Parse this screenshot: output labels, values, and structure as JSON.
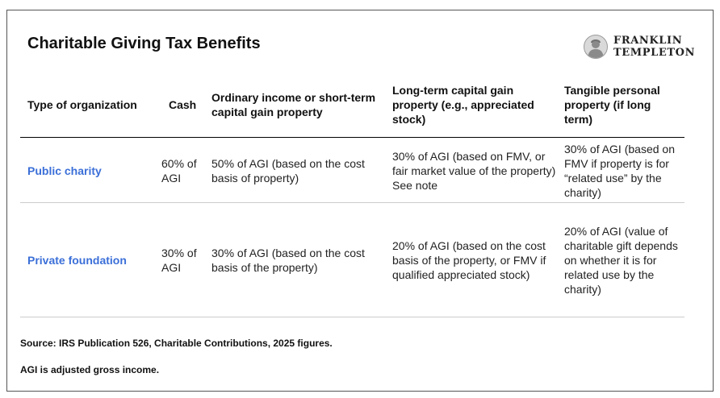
{
  "title": "Charitable Giving Tax Benefits",
  "logo": {
    "line1": "FRANKLIN",
    "line2": "TEMPLETON"
  },
  "columns": [
    "Type of organization",
    "Cash",
    "Ordinary income or short-term capital gain property",
    "Long-term capital gain property (e.g., appreciated stock)",
    "Tangible personal property (if long term)"
  ],
  "rows": [
    {
      "org": "Public charity",
      "cash": "60% of AGI",
      "ordinary": "50% of AGI (based on the cost basis of property)",
      "longterm": "30% of AGI (based on FMV, or fair market value of the property) See note",
      "tangible": "30% of AGI (based on FMV if property is for “related use” by the charity)"
    },
    {
      "org": "Private foundation",
      "cash": "30% of AGI",
      "ordinary": "30% of AGI (based on the cost basis of the property)",
      "longterm": "20% of AGI (based on the cost basis of the property, or FMV if qualified appreciated stock)",
      "tangible": "20% of AGI (value of charitable gift depends on whether it is for related use by the charity)"
    }
  ],
  "notes": {
    "source": "Source: IRS Publication 526, Charitable Contributions, 2025 figures.",
    "agi": "AGI is adjusted gross income."
  },
  "colors": {
    "org_link": "#3b6fd8",
    "rule": "#000000",
    "rule_light": "#cccccc"
  }
}
